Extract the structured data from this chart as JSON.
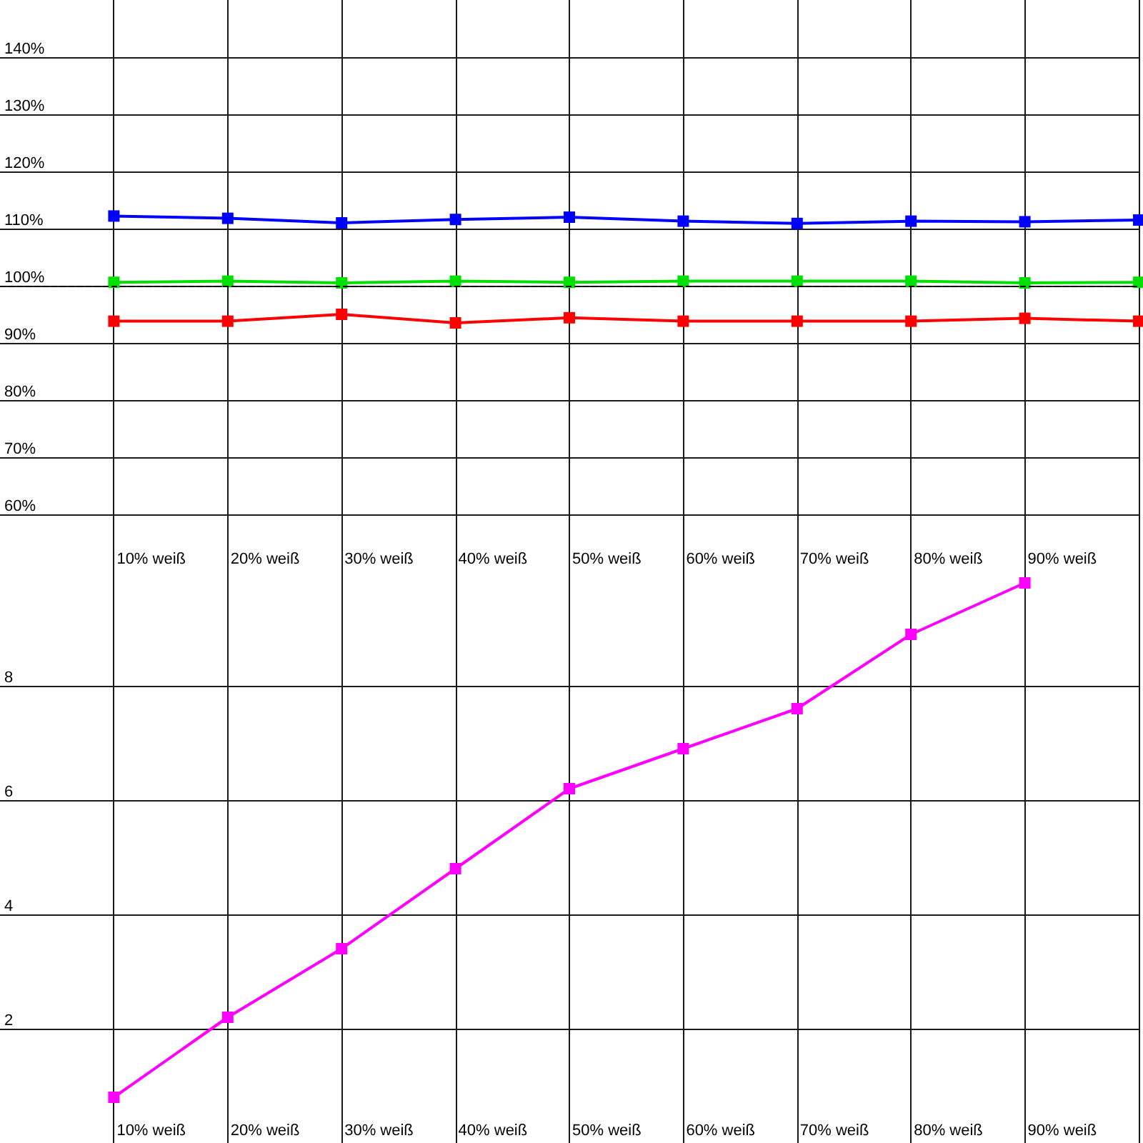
{
  "chart_data": [
    {
      "type": "line",
      "categories": [
        "10% weiß",
        "20% weiß",
        "30% weiß",
        "40% weiß",
        "50% weiß",
        "60% weiß",
        "70% weiß",
        "80% weiß",
        "90% weiß",
        null
      ],
      "series": [
        {
          "color": "#0000ff",
          "values": [
            112.2,
            111.8,
            111.0,
            111.6,
            112.0,
            111.3,
            110.9,
            111.3,
            111.2,
            111.5
          ]
        },
        {
          "color": "#00e000",
          "values": [
            100.6,
            100.8,
            100.5,
            100.8,
            100.6,
            100.8,
            100.8,
            100.8,
            100.5,
            100.6
          ]
        },
        {
          "color": "#ff0000",
          "values": [
            93.8,
            93.8,
            95.0,
            93.5,
            94.4,
            93.8,
            93.8,
            93.8,
            94.3,
            93.8
          ]
        }
      ],
      "ylim": [
        50,
        150
      ],
      "yticks": [
        {
          "value": 60,
          "label": "60%"
        },
        {
          "value": 70,
          "label": "70%"
        },
        {
          "value": 80,
          "label": "80%"
        },
        {
          "value": 90,
          "label": "90%"
        },
        {
          "value": 100,
          "label": "100%"
        },
        {
          "value": 110,
          "label": "110%"
        },
        {
          "value": 120,
          "label": "120%"
        },
        {
          "value": 130,
          "label": "130%"
        },
        {
          "value": 140,
          "label": "140%"
        }
      ],
      "ref_lines": [
        {
          "axis": "y",
          "value": 100,
          "color": "#000000",
          "line_style": "dashed"
        }
      ],
      "grid": true,
      "marker": "square",
      "line_style": "solid"
    },
    {
      "type": "line",
      "categories": [
        "10% weiß",
        "20% weiß",
        "30% weiß",
        "40% weiß",
        "50% weiß",
        "60% weiß",
        "70% weiß",
        "80% weiß",
        "90% weiß",
        null
      ],
      "series": [
        {
          "color": "#ff00ff",
          "values": [
            0.8,
            2.2,
            3.4,
            4.8,
            6.2,
            6.9,
            7.6,
            8.9,
            9.8,
            null
          ]
        }
      ],
      "ylim": [
        0,
        10
      ],
      "yticks": [
        2,
        4,
        6,
        8
      ],
      "grid": true,
      "marker": "square",
      "line_style": "solid"
    }
  ]
}
